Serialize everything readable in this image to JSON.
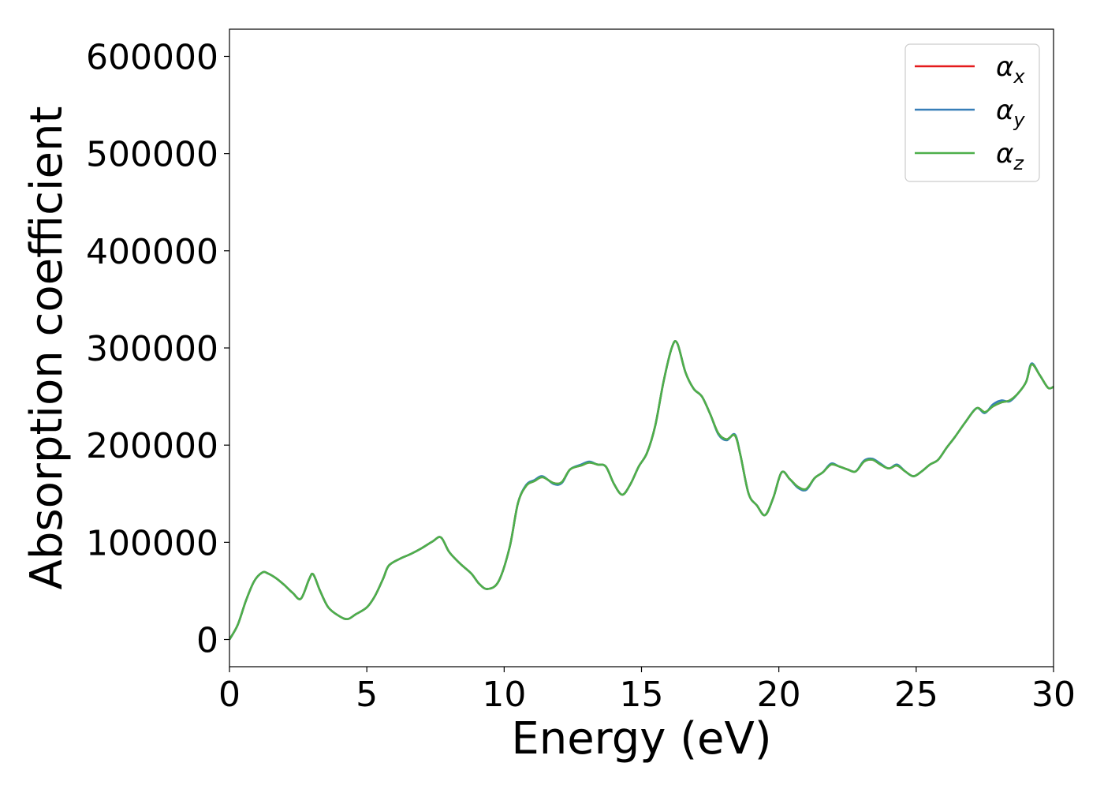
{
  "chart_data": {
    "type": "line",
    "title": "",
    "xlabel": "Energy (eV)",
    "ylabel": "Absorption coefficient",
    "xlim": [
      0,
      30
    ],
    "ylim": [
      -28000,
      628000
    ],
    "xticks": [
      0,
      5,
      10,
      15,
      20,
      25,
      30
    ],
    "yticks": [
      0,
      100000,
      200000,
      300000,
      400000,
      500000,
      600000
    ],
    "grid": false,
    "legend_position": "top-right",
    "series": [
      {
        "name": "αx",
        "legend_base": "α",
        "legend_sub": "x",
        "color": "#e41a1c",
        "x": [
          0,
          0.3,
          0.6,
          0.9,
          1.2,
          1.4,
          1.7,
          2.0,
          2.3,
          2.6,
          2.9,
          3.05,
          3.3,
          3.6,
          4.0,
          4.3,
          4.6,
          5.0,
          5.3,
          5.6,
          5.8,
          6.2,
          6.6,
          7.0,
          7.4,
          7.7,
          8.0,
          8.4,
          8.8,
          9.1,
          9.4,
          9.8,
          10.2,
          10.5,
          10.8,
          11.1,
          11.4,
          11.8,
          12.1,
          12.4,
          12.8,
          13.1,
          13.4,
          13.7,
          14.0,
          14.3,
          14.6,
          14.9,
          15.2,
          15.5,
          15.8,
          16.1,
          16.3,
          16.6,
          16.9,
          17.2,
          17.5,
          17.8,
          18.1,
          18.4,
          18.6,
          18.9,
          19.2,
          19.5,
          19.8,
          20.1,
          20.4,
          20.7,
          21.0,
          21.3,
          21.6,
          21.9,
          22.2,
          22.5,
          22.8,
          23.1,
          23.4,
          23.7,
          24.0,
          24.3,
          24.6,
          24.9,
          25.2,
          25.5,
          25.8,
          26.1,
          26.4,
          26.8,
          27.2,
          27.5,
          27.8,
          28.1,
          28.4,
          28.7,
          29.0,
          29.2,
          29.5,
          29.8,
          30.0
        ],
        "y": [
          0,
          15000,
          40000,
          60000,
          69000,
          68000,
          63000,
          56000,
          48000,
          42000,
          62000,
          67000,
          50000,
          33000,
          24000,
          21000,
          26000,
          33000,
          45000,
          63000,
          76000,
          83000,
          88000,
          94000,
          101000,
          105000,
          90000,
          78000,
          68000,
          57000,
          52000,
          60000,
          95000,
          140000,
          158000,
          163000,
          167000,
          161000,
          162000,
          175000,
          179000,
          182000,
          180000,
          178000,
          160000,
          149000,
          160000,
          178000,
          192000,
          220000,
          265000,
          300000,
          305000,
          275000,
          258000,
          250000,
          232000,
          212000,
          206000,
          210000,
          190000,
          150000,
          138000,
          128000,
          146000,
          172000,
          165000,
          157000,
          155000,
          166000,
          172000,
          180000,
          178000,
          175000,
          173000,
          183000,
          185000,
          180000,
          176000,
          179000,
          173000,
          168000,
          173000,
          180000,
          185000,
          197000,
          208000,
          224000,
          238000,
          234000,
          240000,
          244000,
          246000,
          253000,
          265000,
          283000,
          272000,
          259000,
          260000
        ]
      },
      {
        "name": "αy",
        "legend_base": "α",
        "legend_sub": "y",
        "color": "#377eb8",
        "x": [
          0,
          0.3,
          0.6,
          0.9,
          1.2,
          1.4,
          1.7,
          2.0,
          2.3,
          2.6,
          2.9,
          3.05,
          3.3,
          3.6,
          4.0,
          4.3,
          4.6,
          5.0,
          5.3,
          5.6,
          5.8,
          6.2,
          6.6,
          7.0,
          7.4,
          7.7,
          8.0,
          8.4,
          8.8,
          9.1,
          9.4,
          9.8,
          10.2,
          10.5,
          10.8,
          11.1,
          11.4,
          11.8,
          12.1,
          12.4,
          12.8,
          13.1,
          13.4,
          13.7,
          14.0,
          14.3,
          14.6,
          14.9,
          15.2,
          15.5,
          15.8,
          16.1,
          16.3,
          16.6,
          16.9,
          17.2,
          17.5,
          17.8,
          18.1,
          18.4,
          18.6,
          18.9,
          19.2,
          19.5,
          19.8,
          20.1,
          20.4,
          20.7,
          21.0,
          21.3,
          21.6,
          21.9,
          22.2,
          22.5,
          22.8,
          23.1,
          23.4,
          23.7,
          24.0,
          24.3,
          24.6,
          24.9,
          25.2,
          25.5,
          25.8,
          26.1,
          26.4,
          26.8,
          27.2,
          27.5,
          27.8,
          28.1,
          28.4,
          28.7,
          29.0,
          29.2,
          29.5,
          29.8,
          30.0
        ],
        "y": [
          0,
          15000,
          40000,
          60000,
          69000,
          68000,
          63000,
          56000,
          48000,
          42000,
          62000,
          67000,
          50000,
          33000,
          24000,
          21000,
          26000,
          33000,
          45000,
          63000,
          76000,
          83000,
          88000,
          94000,
          101000,
          105000,
          90000,
          78000,
          68000,
          57000,
          52000,
          60000,
          95000,
          140000,
          159000,
          164000,
          168000,
          160000,
          161000,
          175000,
          180000,
          183000,
          180000,
          178000,
          160000,
          149000,
          160000,
          178000,
          192000,
          220000,
          265000,
          300000,
          305000,
          275000,
          258000,
          250000,
          232000,
          211000,
          205000,
          211000,
          190000,
          150000,
          138000,
          128000,
          146000,
          172000,
          165000,
          156000,
          154000,
          166000,
          172000,
          181000,
          178000,
          175000,
          173000,
          184000,
          186000,
          181000,
          176000,
          180000,
          173000,
          168000,
          173000,
          180000,
          185000,
          197000,
          208000,
          224000,
          238000,
          233000,
          242000,
          246000,
          245000,
          253000,
          265000,
          284000,
          272000,
          259000,
          260000
        ]
      },
      {
        "name": "αz",
        "legend_base": "α",
        "legend_sub": "z",
        "color": "#4daf4a",
        "x": [
          0,
          0.3,
          0.6,
          0.9,
          1.2,
          1.4,
          1.7,
          2.0,
          2.3,
          2.6,
          2.9,
          3.05,
          3.3,
          3.6,
          4.0,
          4.3,
          4.6,
          5.0,
          5.3,
          5.6,
          5.8,
          6.2,
          6.6,
          7.0,
          7.4,
          7.7,
          8.0,
          8.4,
          8.8,
          9.1,
          9.4,
          9.8,
          10.2,
          10.5,
          10.8,
          11.1,
          11.4,
          11.8,
          12.1,
          12.4,
          12.8,
          13.1,
          13.4,
          13.7,
          14.0,
          14.3,
          14.6,
          14.9,
          15.2,
          15.5,
          15.8,
          16.1,
          16.3,
          16.6,
          16.9,
          17.2,
          17.5,
          17.8,
          18.1,
          18.4,
          18.6,
          18.9,
          19.2,
          19.5,
          19.8,
          20.1,
          20.4,
          20.7,
          21.0,
          21.3,
          21.6,
          21.9,
          22.2,
          22.5,
          22.8,
          23.1,
          23.4,
          23.7,
          24.0,
          24.3,
          24.6,
          24.9,
          25.2,
          25.5,
          25.8,
          26.1,
          26.4,
          26.8,
          27.2,
          27.5,
          27.8,
          28.1,
          28.4,
          28.7,
          29.0,
          29.2,
          29.5,
          29.8,
          30.0
        ],
        "y": [
          0,
          15000,
          40000,
          60000,
          69000,
          68000,
          63000,
          56000,
          48000,
          42000,
          62000,
          67000,
          50000,
          33000,
          24000,
          21000,
          26000,
          33000,
          45000,
          63000,
          76000,
          83000,
          88000,
          94000,
          101000,
          105000,
          90000,
          78000,
          68000,
          57000,
          52000,
          60000,
          95000,
          140000,
          158000,
          163000,
          167000,
          161000,
          162000,
          175000,
          179000,
          182000,
          180000,
          178000,
          160000,
          149000,
          160000,
          178000,
          192000,
          220000,
          265000,
          300000,
          305000,
          275000,
          258000,
          250000,
          232000,
          212000,
          206000,
          210000,
          190000,
          150000,
          138000,
          128000,
          146000,
          172000,
          165000,
          157000,
          155000,
          166000,
          172000,
          180000,
          178000,
          175000,
          173000,
          183000,
          185000,
          180000,
          176000,
          179000,
          173000,
          168000,
          173000,
          180000,
          185000,
          197000,
          208000,
          224000,
          238000,
          234000,
          240000,
          244000,
          246000,
          253000,
          265000,
          283000,
          272000,
          259000,
          260000
        ]
      }
    ]
  }
}
